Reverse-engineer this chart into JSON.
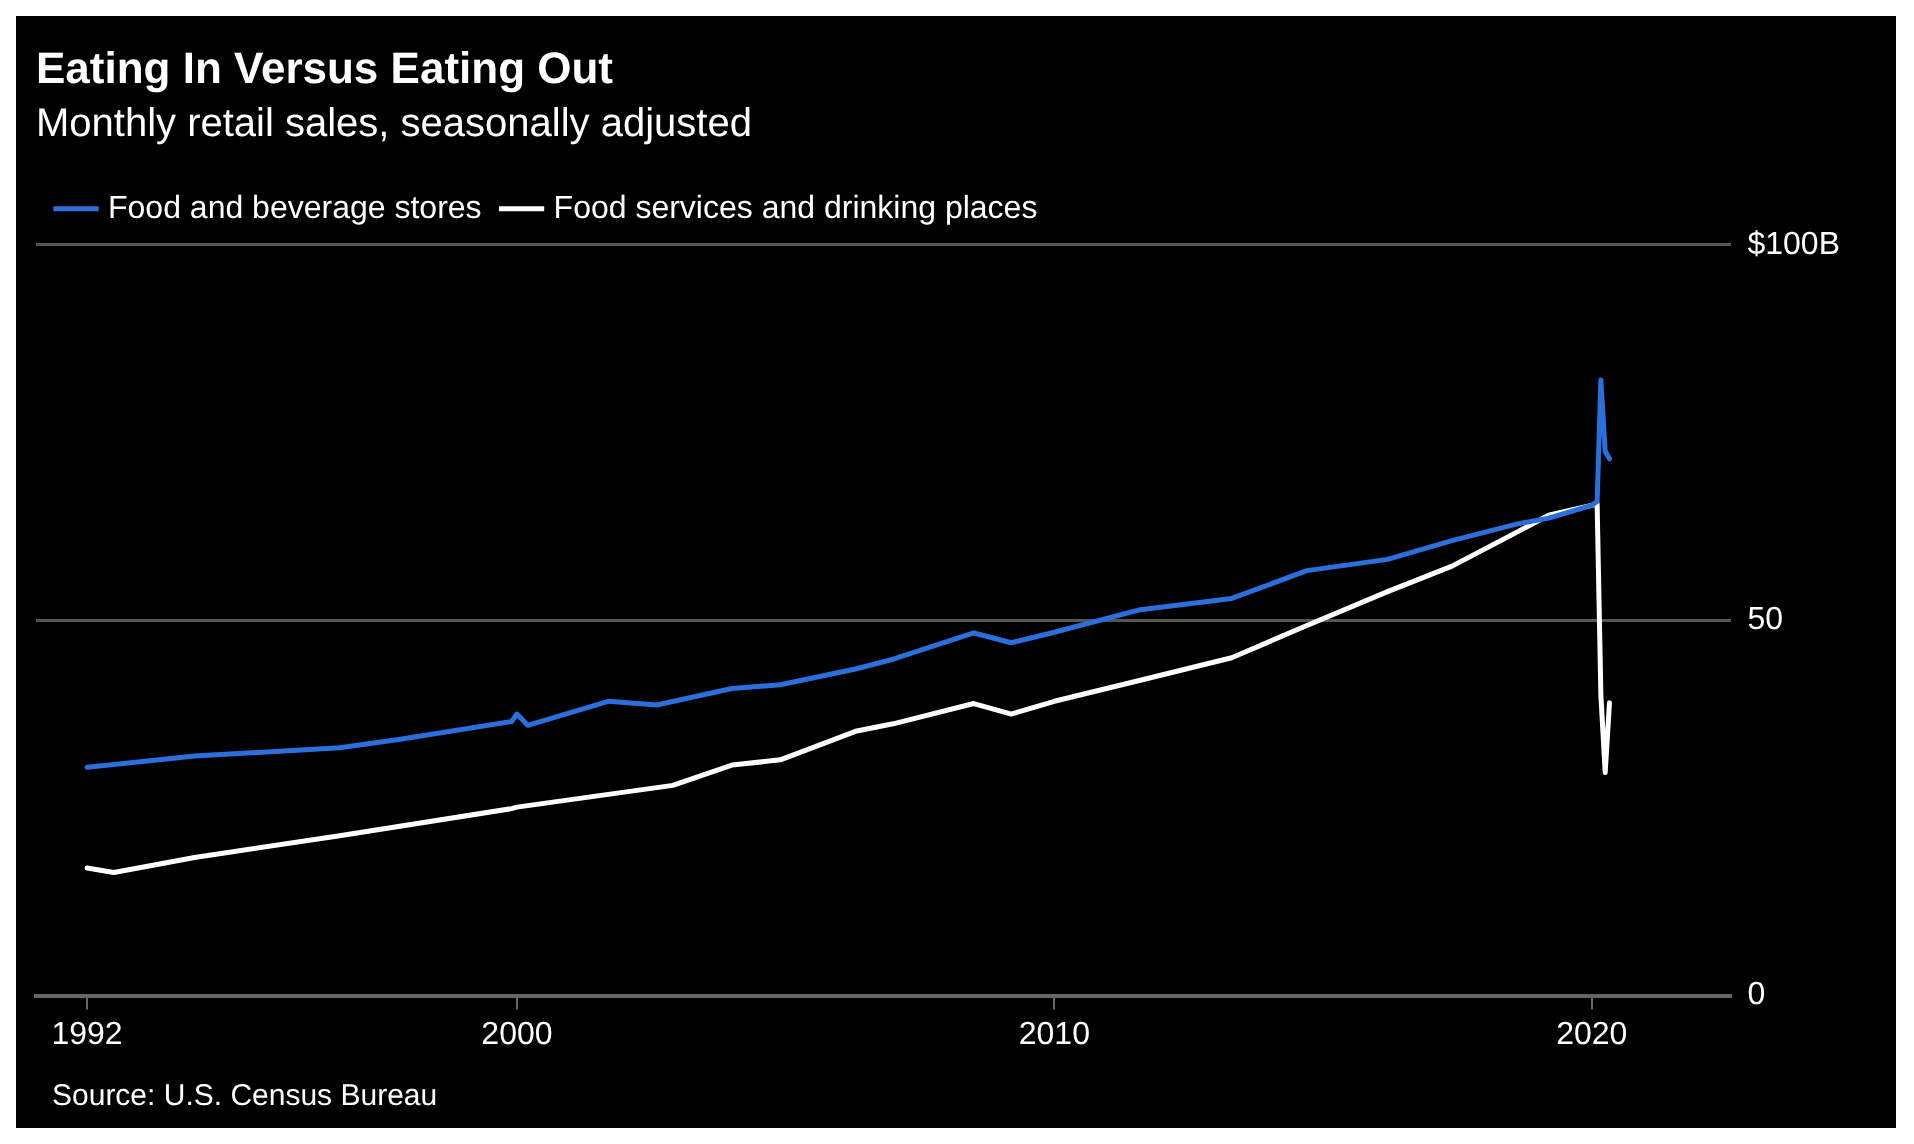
{
  "chart_data": {
    "type": "line",
    "title": "Eating In Versus Eating Out",
    "subtitle": "Monthly retail sales, seasonally adjusted",
    "annotations": [
      "Source: U.S. Census Bureau"
    ],
    "xlim": [
      1991.05,
      2022.6
    ],
    "xticks": [
      1992,
      2000,
      2010,
      2020
    ],
    "ylim": [
      0,
      100
    ],
    "yticks": [
      0,
      50,
      {
        "value": 100,
        "label": "$100B"
      }
    ],
    "grid": "y",
    "legend": "top left",
    "marker": "none",
    "line_style": "solid",
    "series": [
      {
        "name": "Food and beverage stores",
        "color": "#2a6fdb",
        "x": [
          1992.0,
          1994.0,
          1996.7,
          1997.8,
          1999.9,
          2000.0,
          2000.2,
          2001.7,
          2002.6,
          2004.0,
          2004.9,
          2006.3,
          2007.0,
          2008.5,
          2009.2,
          2010.0,
          2011.6,
          2013.3,
          2014.7,
          2016.2,
          2017.4,
          2018.6,
          2019.2,
          2020.0,
          2020.1,
          2020.17,
          2020.25,
          2020.33
        ],
        "values": [
          30.4,
          31.9,
          33.0,
          34.1,
          36.5,
          37.5,
          36.0,
          39.2,
          38.7,
          40.9,
          41.4,
          43.5,
          44.8,
          48.3,
          47.0,
          48.4,
          51.4,
          52.9,
          56.6,
          58.1,
          60.6,
          62.8,
          63.6,
          65.3,
          65.8,
          82.0,
          72.5,
          71.5
        ]
      },
      {
        "name": "Food services and drinking places",
        "color": "#ffffff",
        "x": [
          1992.0,
          1992.5,
          1994.0,
          1996.7,
          1999.9,
          2000.0,
          2002.9,
          2004.0,
          2004.9,
          2006.3,
          2007.0,
          2008.5,
          2009.2,
          2010.0,
          2011.6,
          2013.3,
          2014.7,
          2016.2,
          2017.4,
          2018.6,
          2019.2,
          2020.0,
          2020.1,
          2020.17,
          2020.25,
          2020.33
        ],
        "values": [
          17.0,
          16.4,
          18.4,
          21.3,
          24.9,
          25.1,
          28.0,
          30.7,
          31.4,
          35.2,
          36.2,
          38.9,
          37.5,
          39.2,
          42.0,
          45.0,
          49.3,
          53.8,
          57.2,
          61.7,
          64.0,
          65.3,
          65.5,
          40.0,
          29.7,
          39.0
        ]
      }
    ]
  }
}
